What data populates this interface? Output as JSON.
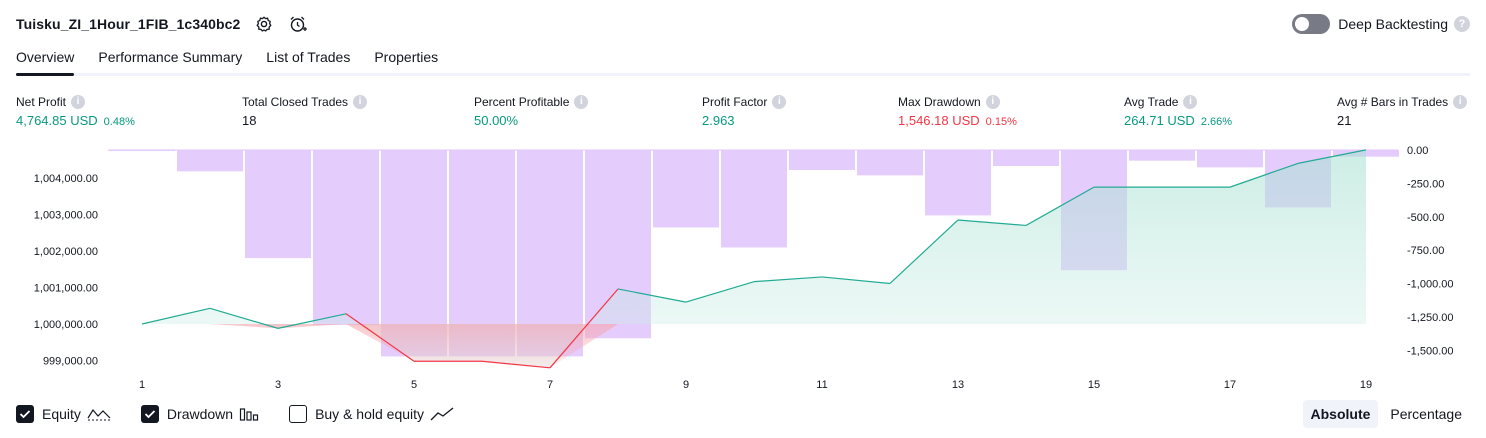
{
  "header": {
    "strategy_name": "Tuisku_ZI_1Hour_1FIB_1c340bc2",
    "settings_icon": "gear-icon",
    "alert_icon": "alarm-clock-add-icon",
    "deep_backtesting_label": "Deep Backtesting",
    "deep_backtesting_enabled": false
  },
  "tabs": [
    {
      "label": "Overview",
      "active": true
    },
    {
      "label": "Performance Summary",
      "active": false
    },
    {
      "label": "List of Trades",
      "active": false
    },
    {
      "label": "Properties",
      "active": false
    }
  ],
  "stats": {
    "net_profit": {
      "label": "Net Profit",
      "value": "4,764.85 USD",
      "pct": "0.48%"
    },
    "total_closed_trades": {
      "label": "Total Closed Trades",
      "value": "18"
    },
    "percent_profitable": {
      "label": "Percent Profitable",
      "value": "50.00%"
    },
    "profit_factor": {
      "label": "Profit Factor",
      "value": "2.963"
    },
    "max_drawdown": {
      "label": "Max Drawdown",
      "value": "1,546.18 USD",
      "pct": "0.15%"
    },
    "avg_trade": {
      "label": "Avg Trade",
      "value": "264.71 USD",
      "pct": "2.66%"
    },
    "avg_bars": {
      "label": "Avg # Bars in Trades",
      "value": "21"
    }
  },
  "colors": {
    "positive": "#089981",
    "negative": "#f23645",
    "drawdown_bar": "#e1c6fd",
    "equity_line": "#22ab94",
    "below_line": "#f23645",
    "equity_fill": "#d5f0ea"
  },
  "chart_data": {
    "type": "line",
    "x": [
      1,
      2,
      3,
      4,
      5,
      6,
      7,
      8,
      9,
      10,
      11,
      12,
      13,
      14,
      15,
      16,
      17,
      18,
      19
    ],
    "x_tick_labels": [
      "1",
      "3",
      "5",
      "7",
      "9",
      "11",
      "13",
      "15",
      "17",
      "19"
    ],
    "series": [
      {
        "name": "Equity",
        "axis": "left",
        "values": [
          1000000,
          1000430,
          999880,
          1000280,
          998980,
          998980,
          998800,
          1000960,
          1000600,
          1001160,
          1001290,
          1001110,
          1002850,
          1002700,
          1003750,
          1003750,
          1003750,
          1004400,
          1004770
        ]
      },
      {
        "name": "Drawdown",
        "axis": "right",
        "values": [
          -2,
          -160,
          -810,
          -1310,
          -1546,
          -1546,
          -1546,
          -1410,
          -580,
          -730,
          -150,
          -190,
          -490,
          -120,
          -900,
          -80,
          -130,
          -430,
          -50
        ]
      }
    ],
    "left_axis": {
      "ticks": [
        999000,
        1000000,
        1001000,
        1002000,
        1003000,
        1004000
      ],
      "tick_labels": [
        "999,000.00",
        "1,000,000.00",
        "1,001,000.00",
        "1,002,000.00",
        "1,003,000.00",
        "1,004,000.00"
      ]
    },
    "right_axis": {
      "ticks": [
        0,
        -250,
        -500,
        -750,
        -1000,
        -1250,
        -1500
      ],
      "tick_labels": [
        "0.00",
        "-250.00",
        "-500.00",
        "-750.00",
        "-1,000.00",
        "-1,250.00",
        "-1,500.00"
      ]
    },
    "baseline_equity": 1000000
  },
  "legend": {
    "items": [
      {
        "label": "Equity",
        "checked": true,
        "icon": "equity-line-icon"
      },
      {
        "label": "Drawdown",
        "checked": true,
        "icon": "drawdown-bars-icon"
      },
      {
        "label": "Buy & hold equity",
        "checked": false,
        "icon": "buy-hold-line-icon"
      }
    ]
  },
  "mode": {
    "options": [
      "Absolute",
      "Percentage"
    ],
    "selected": "Absolute"
  }
}
